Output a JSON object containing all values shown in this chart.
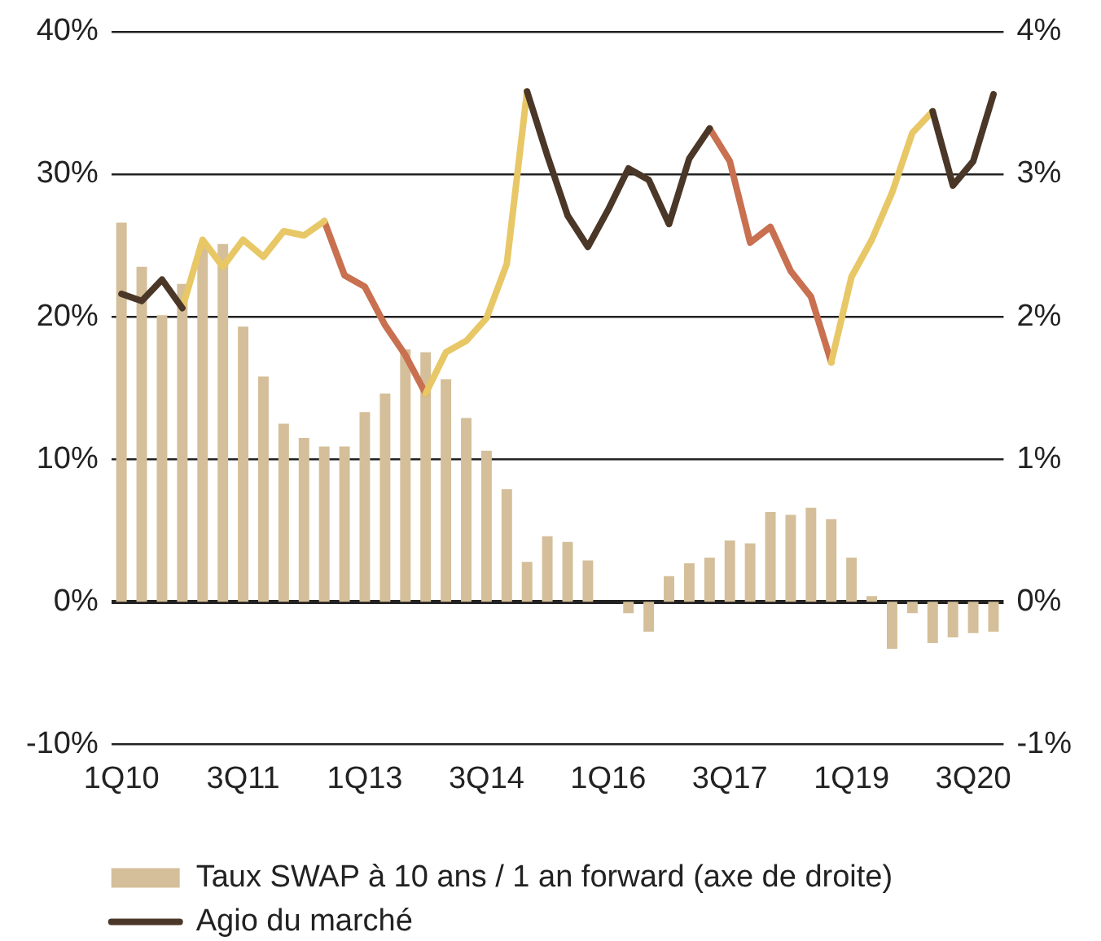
{
  "chart_data": {
    "type": "bar",
    "categories": [
      "1Q10",
      null,
      null,
      null,
      null,
      null,
      "3Q11",
      null,
      null,
      null,
      null,
      null,
      "1Q13",
      null,
      null,
      null,
      null,
      null,
      "3Q14",
      null,
      null,
      null,
      null,
      null,
      "1Q16",
      null,
      null,
      null,
      null,
      null,
      "3Q17",
      null,
      null,
      null,
      null,
      null,
      "1Q19",
      null,
      null,
      null,
      null,
      null,
      "3Q20",
      null
    ],
    "series": [
      {
        "name": "Taux SWAP à 10 ans / 1 an forward (axe de droite)",
        "axis": "y2",
        "color": "#d4bf9a",
        "values": [
          2.66,
          2.35,
          2.01,
          2.23,
          2.5,
          2.51,
          1.93,
          1.58,
          1.25,
          1.15,
          1.09,
          1.09,
          1.33,
          1.46,
          1.77,
          1.75,
          1.56,
          1.29,
          1.06,
          0.79,
          0.28,
          0.46,
          0.42,
          0.29,
          0,
          -0.08,
          -0.21,
          0.18,
          0.27,
          0.31,
          0.43,
          0.41,
          0.63,
          0.61,
          0.66,
          0.58,
          0.31,
          0.04,
          -0.33,
          -0.08,
          -0.29,
          -0.25,
          -0.22,
          -0.21
        ]
      },
      {
        "name": "Agio du marché",
        "type": "line",
        "axis": "y",
        "color": "#4a3728",
        "values": [
          21.6,
          21.1,
          22.6,
          20.6,
          null,
          null,
          null,
          null,
          null,
          null,
          null,
          null,
          null,
          null,
          null,
          null,
          null,
          null,
          null,
          null,
          35.8,
          31.3,
          27.1,
          24.9,
          27.5,
          30.4,
          29.6,
          26.5,
          31.1,
          33.2,
          null,
          null,
          null,
          null,
          null,
          null,
          null,
          null,
          null,
          null,
          34.4,
          29.2,
          30.9,
          35.6
        ]
      },
      {
        "type": "line",
        "axis": "y",
        "color": "#e8c766",
        "values": [
          null,
          null,
          null,
          20.6,
          25.4,
          23.5,
          25.4,
          24.2,
          26.0,
          25.7,
          26.7,
          null,
          null,
          null,
          null,
          14.6,
          17.5,
          18.3,
          19.9,
          23.7,
          35.8,
          null,
          null,
          null,
          null,
          null,
          null,
          null,
          null,
          null,
          null,
          null,
          null,
          null,
          null,
          16.8,
          22.8,
          25.4,
          28.7,
          32.9,
          34.4,
          null,
          null,
          null
        ]
      },
      {
        "type": "line",
        "axis": "y",
        "color": "#c87050",
        "values": [
          null,
          null,
          null,
          null,
          null,
          null,
          null,
          null,
          null,
          null,
          26.7,
          22.9,
          22.1,
          19.4,
          17.3,
          14.6,
          null,
          null,
          null,
          null,
          null,
          null,
          null,
          null,
          null,
          null,
          null,
          null,
          null,
          33.2,
          30.9,
          25.2,
          26.3,
          23.2,
          21.4,
          16.8,
          null,
          null,
          null,
          null,
          null,
          null,
          null,
          null
        ]
      }
    ],
    "ylim": [
      -10,
      40
    ],
    "yticks": [
      {
        "value": -10,
        "label": "-10%"
      },
      {
        "value": 0,
        "label": "0%"
      },
      {
        "value": 10,
        "label": "10%"
      },
      {
        "value": 20,
        "label": "20%"
      },
      {
        "value": 30,
        "label": "30%"
      },
      {
        "value": 40,
        "label": "40%"
      }
    ],
    "y2lim": [
      -1,
      4
    ],
    "y2ticks": [
      {
        "value": -1,
        "label": "-1%"
      },
      {
        "value": 0,
        "label": "0%"
      },
      {
        "value": 1,
        "label": "1%"
      },
      {
        "value": 2,
        "label": "2%"
      },
      {
        "value": 3,
        "label": "3%"
      },
      {
        "value": 4,
        "label": "4%"
      }
    ],
    "grid": "y",
    "legend": "bottom",
    "marker": "none"
  }
}
